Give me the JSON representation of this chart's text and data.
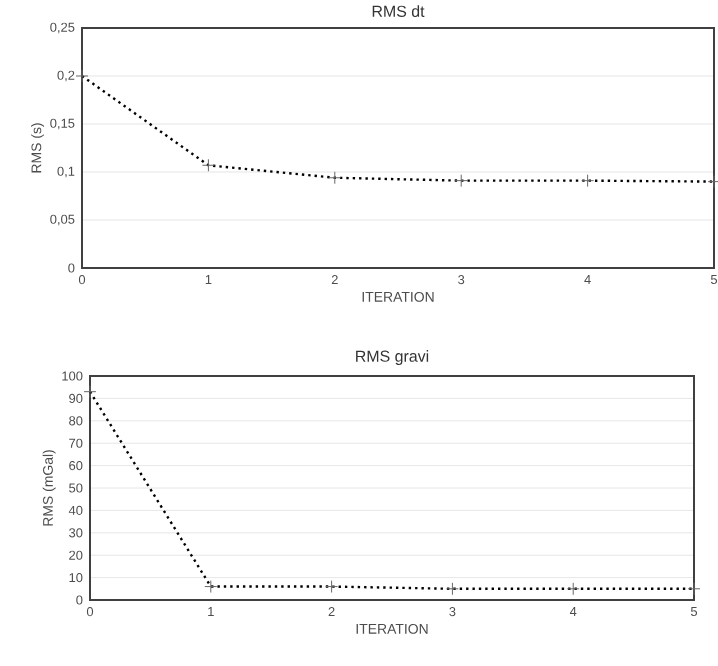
{
  "chart_data": [
    {
      "type": "line",
      "title": "RMS dt",
      "xlabel": "ITERATION",
      "ylabel": "RMS (s)",
      "x": [
        0,
        1,
        2,
        3,
        4,
        5
      ],
      "series": [
        {
          "color": "#000000",
          "values": [
            0.2,
            0.107,
            0.094,
            0.091,
            0.091,
            0.09
          ]
        }
      ],
      "xlim": [
        0,
        5
      ],
      "xticks": [
        0,
        1,
        2,
        3,
        4,
        5
      ],
      "ylim": [
        0,
        0.25
      ],
      "yticks": [
        0,
        {
          "value": 0.05,
          "label": "0,05"
        },
        {
          "value": 0.1,
          "label": "0,1"
        },
        {
          "value": 0.15,
          "label": "0,15"
        },
        {
          "value": 0.2,
          "label": "0,2"
        },
        {
          "value": 0.25,
          "label": "0,25"
        }
      ],
      "grid": "y",
      "marker": "cross",
      "line_style": "dotted"
    },
    {
      "type": "line",
      "title": "RMS gravi",
      "xlabel": "ITERATION",
      "ylabel": "RMS (mGal)",
      "x": [
        0,
        1,
        2,
        3,
        4,
        5
      ],
      "series": [
        {
          "color": "#000000",
          "values": [
            93,
            6,
            6,
            5,
            5,
            5
          ]
        }
      ],
      "xlim": [
        0,
        5
      ],
      "xticks": [
        0,
        1,
        2,
        3,
        4,
        5
      ],
      "ylim": [
        0,
        100
      ],
      "yticks": [
        0,
        10,
        20,
        30,
        40,
        50,
        60,
        70,
        80,
        90,
        100
      ],
      "grid": "y",
      "marker": "cross",
      "line_style": "dotted"
    }
  ]
}
